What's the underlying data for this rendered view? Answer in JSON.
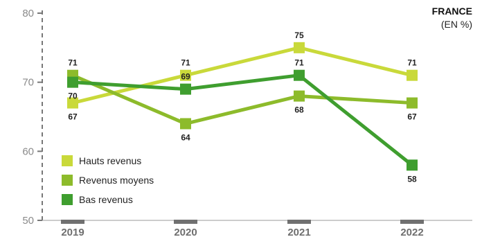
{
  "header": {
    "title": "FRANCE",
    "subtitle": "(EN %)"
  },
  "chart_data": {
    "type": "line",
    "x": [
      "2019",
      "2020",
      "2021",
      "2022"
    ],
    "ylim": [
      50,
      80
    ],
    "yticks": [
      50,
      60,
      70,
      80
    ],
    "series": [
      {
        "name": "Hauts revenus",
        "color": "#c9d93a",
        "values": [
          67,
          71,
          75,
          71
        ]
      },
      {
        "name": "Revenus moyens",
        "color": "#8dbb2b",
        "values": [
          71,
          64,
          68,
          67
        ]
      },
      {
        "name": "Bas revenus",
        "color": "#3f9e2f",
        "values": [
          70,
          69,
          71,
          58
        ]
      }
    ],
    "legend_position": "bottom-left"
  }
}
